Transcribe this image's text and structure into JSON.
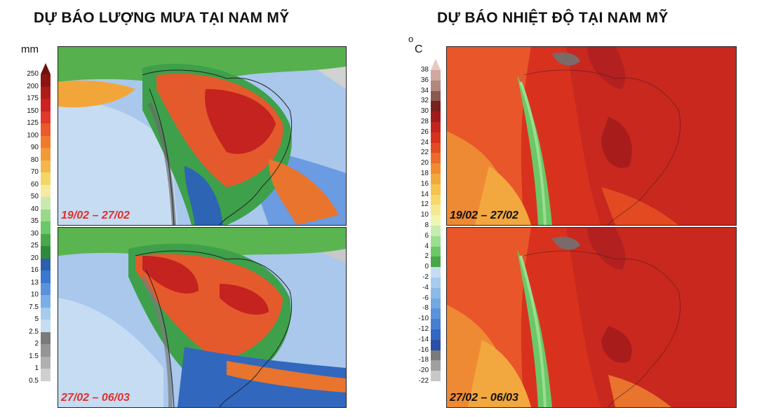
{
  "rain_panel": {
    "title": "DỰ BÁO LƯỢNG MƯA TẠI NAM MỸ",
    "unit": "mm",
    "levels": [
      "250",
      "200",
      "175",
      "150",
      "125",
      "100",
      "90",
      "80",
      "70",
      "60",
      "50",
      "40",
      "35",
      "30",
      "25",
      "20",
      "16",
      "13",
      "10",
      "7.5",
      "5",
      "2.5",
      "2",
      "1.5",
      "1",
      "0.5"
    ],
    "level_colors": [
      "#6e1010",
      "#8e1414",
      "#b01a1a",
      "#cc2222",
      "#e0382a",
      "#ea5a2a",
      "#ef7a2e",
      "#f19a38",
      "#f2b84a",
      "#f4d668",
      "#f6e9a0",
      "#c8eab0",
      "#9ad98c",
      "#6cc866",
      "#4aa84a",
      "#2f8a3c",
      "#2c5fb0",
      "#3a78cf",
      "#5a92dc",
      "#7aaee6",
      "#a6cbee",
      "#c4ddf2",
      "#7a7a7a",
      "#959595",
      "#b0b0b0",
      "#cfcfcf"
    ],
    "maps": [
      {
        "period": "19/02 – 27/02"
      },
      {
        "period": "27/02 – 06/03"
      }
    ]
  },
  "temp_panel": {
    "title": "DỰ BÁO NHIỆT ĐỘ TẠI NAM MỸ",
    "unit_deg": "o",
    "unit": "C",
    "levels": [
      "38",
      "36",
      "34",
      "32",
      "30",
      "28",
      "26",
      "24",
      "22",
      "20",
      "18",
      "16",
      "14",
      "12",
      "10",
      "8",
      "6",
      "4",
      "2",
      "0",
      "-2",
      "-4",
      "-6",
      "-8",
      "-10",
      "-12",
      "-14",
      "-16",
      "-18",
      "-20",
      "-22"
    ],
    "level_colors": [
      "#e8c8c0",
      "#cfa8a0",
      "#b08880",
      "#8a5a52",
      "#7a2020",
      "#a01c1c",
      "#c0261e",
      "#d8321e",
      "#e44a22",
      "#ec6a2a",
      "#f08c30",
      "#f2aa3c",
      "#f4c44e",
      "#f5d868",
      "#f6e890",
      "#eef6b0",
      "#c8ecb0",
      "#9ade90",
      "#6cc866",
      "#48a848",
      "#c4ddf2",
      "#a6cbee",
      "#8cbae8",
      "#74a8e2",
      "#5a92dc",
      "#467ed2",
      "#3466c4",
      "#2850a8",
      "#7a7a7a",
      "#a0a0a0",
      "#c8c8c8"
    ],
    "maps": [
      {
        "period": "19/02 – 27/02"
      },
      {
        "period": "27/02 – 06/03"
      }
    ]
  }
}
